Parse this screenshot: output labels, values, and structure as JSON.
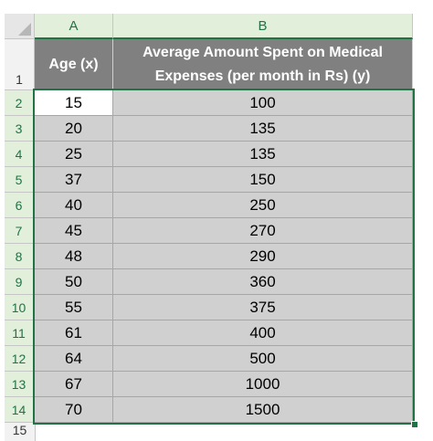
{
  "columns": [
    "A",
    "B"
  ],
  "header": {
    "row_label": "1",
    "a": "Age (x)",
    "b": "Average Amount Spent on Medical Expenses (per month in Rs) (y)"
  },
  "rows": [
    {
      "row": "2",
      "age": "15",
      "amount": "100"
    },
    {
      "row": "3",
      "age": "20",
      "amount": "135"
    },
    {
      "row": "4",
      "age": "25",
      "amount": "135"
    },
    {
      "row": "5",
      "age": "37",
      "amount": "150"
    },
    {
      "row": "6",
      "age": "40",
      "amount": "250"
    },
    {
      "row": "7",
      "age": "45",
      "amount": "270"
    },
    {
      "row": "8",
      "age": "48",
      "amount": "290"
    },
    {
      "row": "9",
      "age": "50",
      "amount": "360"
    },
    {
      "row": "10",
      "age": "55",
      "amount": "375"
    },
    {
      "row": "11",
      "age": "61",
      "amount": "400"
    },
    {
      "row": "12",
      "age": "64",
      "amount": "500"
    },
    {
      "row": "13",
      "age": "67",
      "amount": "1000"
    },
    {
      "row": "14",
      "age": "70",
      "amount": "1500"
    }
  ],
  "next_row_label": "15",
  "colors": {
    "accent": "#217346",
    "header_bg": "#808080",
    "selection_bg": "#d0d0d0"
  }
}
